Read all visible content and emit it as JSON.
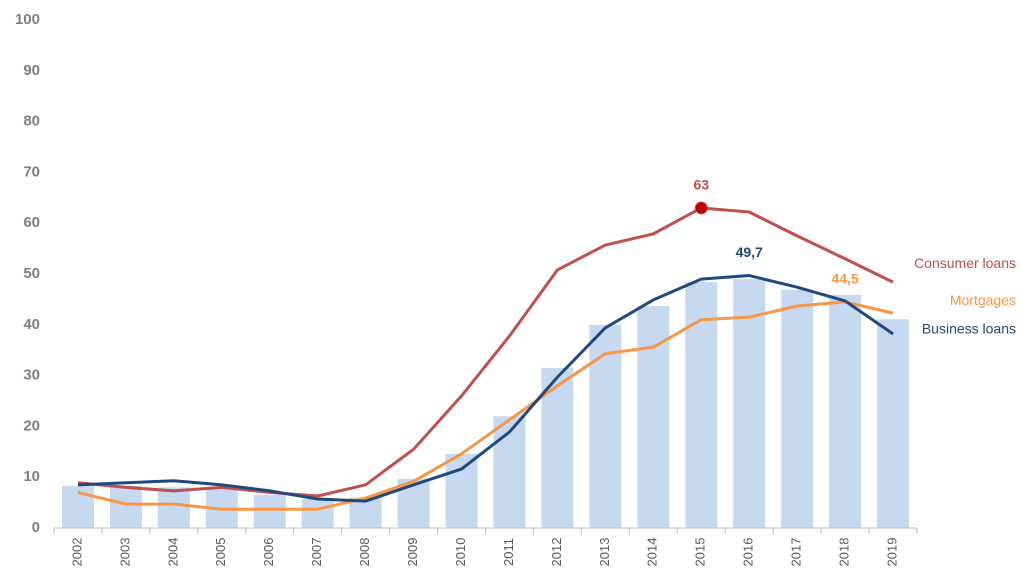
{
  "chart_data": {
    "type": "bar_line",
    "categories": [
      "2002",
      "2003",
      "2004",
      "2005",
      "2006",
      "2007",
      "2008",
      "2009",
      "2010",
      "2011",
      "2012",
      "2013",
      "2014",
      "2015",
      "2016",
      "2017",
      "2018",
      "2019"
    ],
    "bars": {
      "color": "#c6d9f1",
      "values": [
        8.3,
        8.3,
        8,
        8,
        6.5,
        5.7,
        6,
        9.7,
        14.6,
        22,
        31.5,
        40,
        43.7,
        48.4,
        49,
        46.9,
        45.9,
        41.1
      ]
    },
    "series": [
      {
        "name": "Consumer loans",
        "color": "#c0504d",
        "marker_color": "#c00000",
        "values": [
          8.9,
          8,
          7.3,
          8,
          7,
          6.3,
          8.5,
          15.5,
          26,
          37.8,
          50.8,
          55.7,
          57.9,
          63,
          62.2,
          57.5,
          53,
          48.4
        ],
        "value_labels": [
          null,
          null,
          null,
          null,
          null,
          null,
          null,
          null,
          null,
          null,
          null,
          null,
          null,
          "63",
          null,
          null,
          null,
          null
        ]
      },
      {
        "name": "Mortgages",
        "color": "#f79646",
        "values": [
          7,
          4.7,
          4.7,
          3.7,
          3.7,
          3.7,
          5.9,
          9.2,
          14.6,
          21.3,
          28,
          34.3,
          35.6,
          41,
          41.5,
          43.7,
          44.5,
          42.3
        ],
        "value_labels": [
          null,
          null,
          null,
          null,
          null,
          null,
          null,
          null,
          null,
          null,
          null,
          null,
          null,
          null,
          null,
          null,
          "44,5",
          null
        ]
      },
      {
        "name": "Business loans",
        "color": "#1f497d",
        "values": [
          8.5,
          8.9,
          9.3,
          8.5,
          7.3,
          5.7,
          5.3,
          8.5,
          11.6,
          18.9,
          29.7,
          39.4,
          44.9,
          49,
          49.7,
          47.4,
          44.7,
          38.2
        ],
        "value_labels": [
          null,
          null,
          null,
          null,
          null,
          null,
          null,
          null,
          null,
          null,
          null,
          null,
          null,
          null,
          "49,7",
          null,
          null,
          null
        ]
      }
    ],
    "ylim": [
      0,
      100
    ],
    "yticks": [
      0,
      10,
      20,
      30,
      40,
      50,
      60,
      70,
      80,
      90,
      100
    ]
  }
}
